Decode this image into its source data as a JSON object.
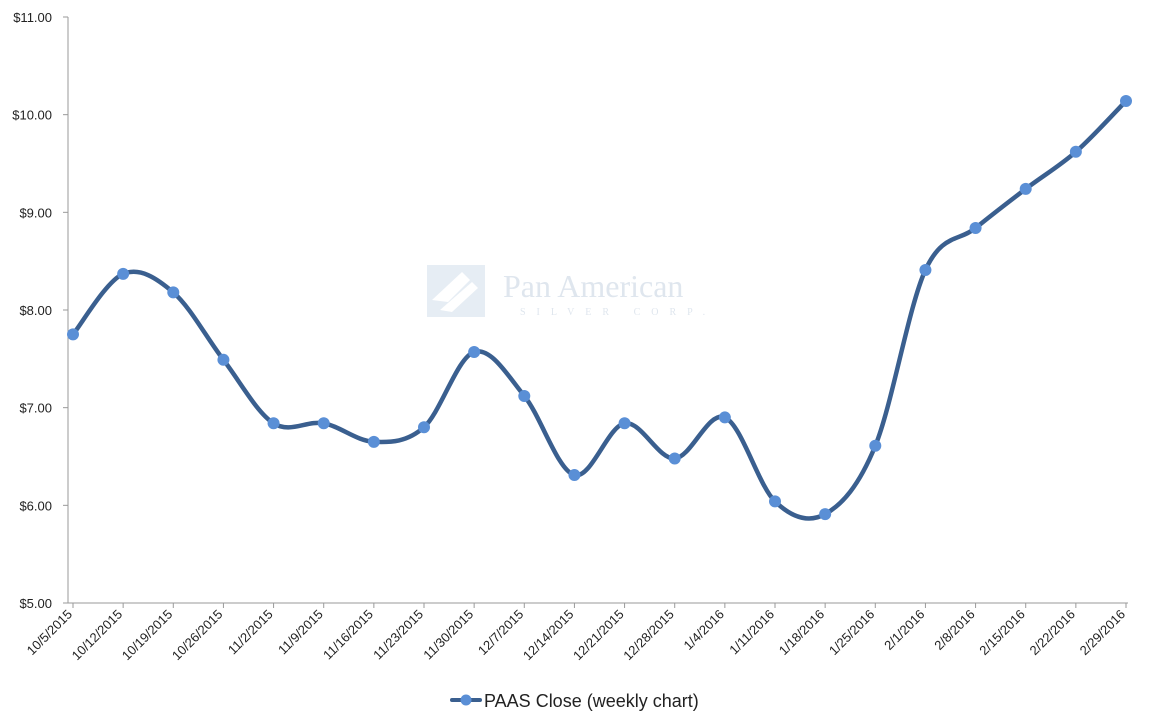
{
  "chart_data": {
    "type": "line",
    "categories": [
      "10/5/2015",
      "10/12/2015",
      "10/19/2015",
      "10/26/2015",
      "11/2/2015",
      "11/9/2015",
      "11/16/2015",
      "11/23/2015",
      "11/30/2015",
      "12/7/2015",
      "12/14/2015",
      "12/21/2015",
      "12/28/2015",
      "1/4/2016",
      "1/11/2016",
      "1/18/2016",
      "1/25/2016",
      "2/1/2016",
      "2/8/2016",
      "2/15/2016",
      "2/22/2016",
      "2/29/2016"
    ],
    "series": [
      {
        "name": "PAAS Close (weekly chart)",
        "values": [
          7.75,
          8.37,
          8.18,
          7.49,
          6.84,
          6.84,
          6.65,
          6.8,
          7.57,
          7.12,
          6.31,
          6.84,
          6.48,
          6.9,
          6.04,
          5.91,
          6.61,
          8.41,
          8.84,
          9.24,
          9.62,
          10.14
        ],
        "color": "#3a5f8f",
        "marker_color": "#5a8fd6"
      }
    ],
    "ylim": [
      5,
      11
    ],
    "yticks": [
      "$5.00",
      "$6.00",
      "$7.00",
      "$8.00",
      "$9.00",
      "$10.00",
      "$11.00"
    ],
    "grid": false,
    "legend_position": "bottom-center",
    "watermark": {
      "name": "Pan American",
      "tagline": "SILVER CORP."
    }
  }
}
